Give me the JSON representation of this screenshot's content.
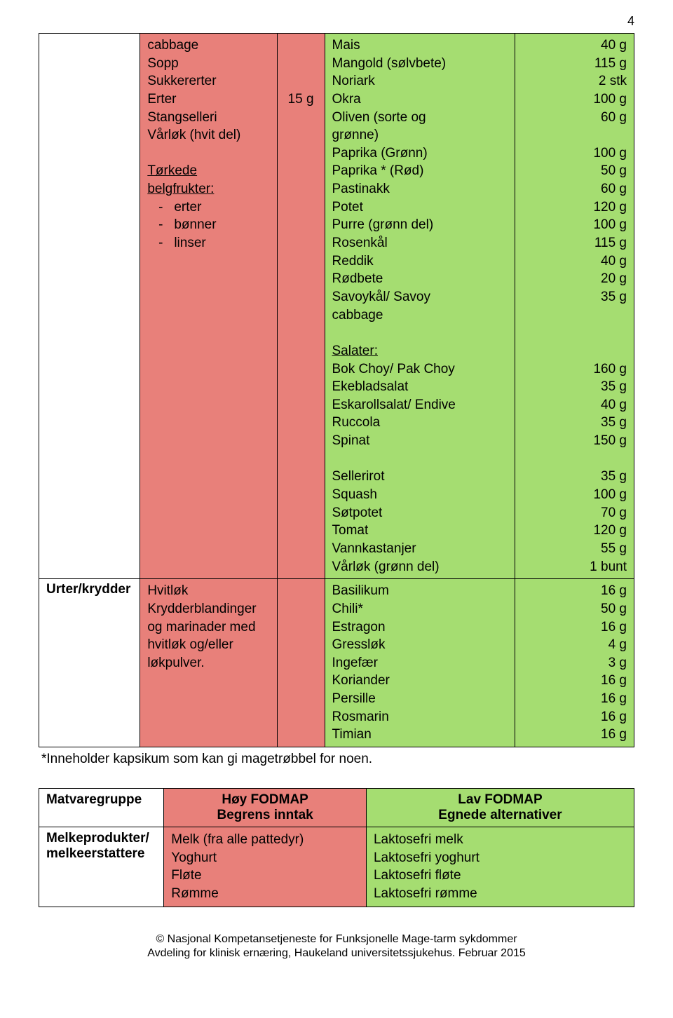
{
  "page_number": "4",
  "colors": {
    "red_bg": "#e8807a",
    "green_bg": "#a5dd71",
    "white": "#ffffff",
    "text": "#000000",
    "border": "#000000"
  },
  "table1": {
    "rows": [
      {
        "cat": "",
        "red_items": [
          "cabbage",
          "Sopp",
          "Sukkererter",
          "Erter",
          "Stangselleri",
          "Vårløk (hvit del)",
          "",
          "Tørkede",
          "belgfrukter:",
          "   -   erter",
          "   -   bønner",
          "   -   linser"
        ],
        "red_amounts": [
          "",
          "",
          "",
          "15 g",
          "",
          "",
          "",
          "",
          "",
          "",
          "",
          ""
        ],
        "green_items": [
          "Mais",
          "Mangold (sølvbete)",
          "Noriark",
          "Okra",
          "Oliven (sorte og",
          "grønne)",
          "Paprika (Grønn)",
          "Paprika * (Rød)",
          "Pastinakk",
          "Potet",
          "Purre (grønn del)",
          "Rosenkål",
          "Reddik",
          "Rødbete",
          "Savoykål/ Savoy",
          "cabbage",
          "",
          "__Salater:__",
          "Bok Choy/ Pak Choy",
          "Ekebladsalat",
          "Eskarollsalat/ Endive",
          "Ruccola",
          "Spinat",
          "",
          "Sellerirot",
          "Squash",
          "Søtpotet",
          "Tomat",
          "Vannkastanjer",
          "Vårløk (grønn del)"
        ],
        "green_amounts": [
          "40 g",
          "115 g",
          "2 stk",
          "100 g",
          "60 g",
          "",
          "100 g",
          "50 g",
          "60 g",
          "120 g",
          "100 g",
          "115 g",
          "40 g",
          "20 g",
          "35 g",
          "",
          "",
          "",
          "160 g",
          "35 g",
          "40 g",
          "35 g",
          "150 g",
          "",
          "35 g",
          "100 g",
          "70 g",
          "120 g",
          "55 g",
          "1 bunt"
        ]
      },
      {
        "cat": "Urter/krydder",
        "red_items": [
          "Hvitløk",
          "Krydderblandinger",
          "og marinader med",
          "hvitløk og/eller",
          "løkpulver."
        ],
        "red_amounts": [
          "",
          "",
          "",
          "",
          ""
        ],
        "green_items": [
          "Basilikum",
          "Chili*",
          "Estragon",
          "Gressløk",
          "Ingefær",
          "Koriander",
          "Persille",
          "Rosmarin",
          "Timian"
        ],
        "green_amounts": [
          "16 g",
          "50 g",
          "16 g",
          "4 g",
          "3 g",
          "16 g",
          "16 g",
          "16 g",
          "16 g"
        ]
      }
    ]
  },
  "footnote": "*Inneholder kapsikum som kan gi magetrøbbel for noen.",
  "table2": {
    "headers": {
      "cat": "Matvaregruppe",
      "red": "Høy FODMAP\nBegrens inntak",
      "green": "Lav FODMAP\nEgnede alternativer"
    },
    "row": {
      "cat": "Melkeprodukter/\nmelkeerstattere",
      "red_items": [
        "Melk (fra alle pattedyr)",
        "Yoghurt",
        "Fløte",
        "Rømme"
      ],
      "green_items": [
        "Laktosefri melk",
        "Laktosefri yoghurt",
        "Laktosefri fløte",
        "Laktosefri rømme"
      ]
    }
  },
  "footer": {
    "line1": "© Nasjonal Kompetansetjeneste for Funksjonelle Mage-tarm sykdommer",
    "line2": "Avdeling for klinisk ernæring, Haukeland universitetssjukehus. Februar 2015"
  }
}
